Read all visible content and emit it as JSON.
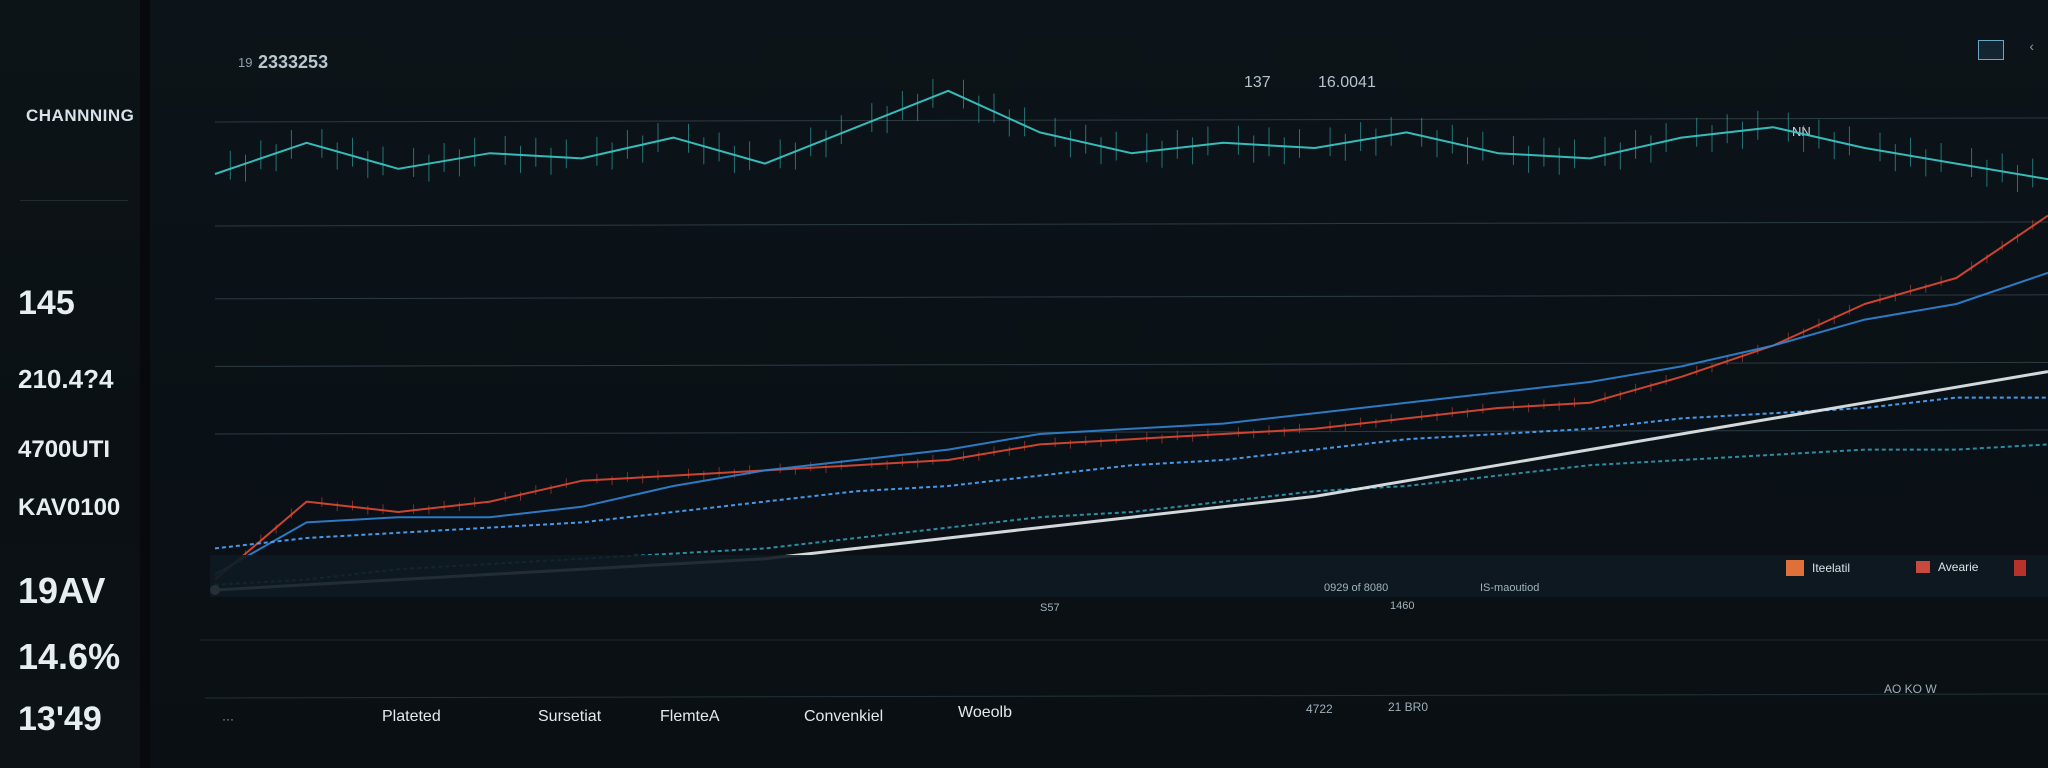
{
  "sidebar": {
    "top_label": "",
    "heading": "CHANNNING",
    "metrics": [
      {
        "value": "145",
        "sub": ""
      },
      {
        "value": "210.4?4",
        "sub": ""
      },
      {
        "value": "4700UTI",
        "sub": ""
      },
      {
        "value": "KAV0100",
        "sub": ""
      },
      {
        "value": "19AV",
        "sub": ""
      },
      {
        "value": "14.6%",
        "sub": ""
      },
      {
        "value": "13'49",
        "sub": ""
      }
    ]
  },
  "header": {
    "left_code": "19",
    "left_value": "2333253",
    "center_a": "137",
    "center_b": "16.0041",
    "right_a": "NN",
    "right_b": ""
  },
  "legend": [
    {
      "label": "Iteelatil",
      "color": "#e0703a"
    },
    {
      "label": "Avearie",
      "color": "#c84a3c"
    },
    {
      "label": "",
      "color": "#b8322c"
    }
  ],
  "mid_strip": {
    "a": "S57",
    "b": "0929 of 8080",
    "c": "IS-maoutiod",
    "d": "1460"
  },
  "bottom_tabs": [
    "Plateted",
    "Sursetiat",
    "FlemteA",
    "Convenkiel",
    "Woeolb"
  ],
  "bottom_right": [
    "4722",
    "21 BR0",
    "AO KO W"
  ],
  "colors": {
    "teal": "#39c4c4",
    "red": "#e04a33",
    "blue": "#2f86d6",
    "white": "#e9eef0"
  },
  "chart_data": {
    "type": "line",
    "title": "",
    "xlabel": "",
    "ylabel": "",
    "x": [
      0,
      5,
      10,
      15,
      20,
      25,
      30,
      35,
      40,
      45,
      50,
      55,
      60,
      65,
      70,
      75,
      80,
      85,
      90,
      95,
      100
    ],
    "ylim": [
      0,
      100
    ],
    "grid": true,
    "legend_position": "top-right",
    "series": [
      {
        "name": "",
        "color": "#39c4c4",
        "values": [
          80,
          86,
          81,
          84,
          83,
          87,
          82,
          89,
          96,
          88,
          84,
          86,
          85,
          88,
          84,
          83,
          87,
          89,
          85,
          82,
          79
        ]
      },
      {
        "name": "",
        "color": "#e04a33",
        "values": [
          2,
          17,
          15,
          17,
          21,
          22,
          23,
          24,
          25,
          28,
          29,
          30,
          31,
          33,
          35,
          36,
          41,
          47,
          55,
          60,
          72
        ]
      },
      {
        "name": "",
        "color": "#2f86d6",
        "values": [
          3,
          13,
          14,
          14,
          16,
          20,
          23,
          25,
          27,
          30,
          31,
          32,
          34,
          36,
          38,
          40,
          43,
          47,
          52,
          55,
          61
        ]
      },
      {
        "name": "",
        "color": "#4aa8ff",
        "values": [
          8,
          10,
          11,
          12,
          13,
          15,
          17,
          19,
          20,
          22,
          24,
          25,
          27,
          29,
          30,
          31,
          33,
          34,
          35,
          37,
          37
        ]
      },
      {
        "name": "",
        "color": "#2e9bb3",
        "values": [
          1,
          2,
          4,
          5,
          6,
          7,
          8,
          10,
          12,
          14,
          15,
          17,
          19,
          20,
          22,
          24,
          25,
          26,
          27,
          27,
          28
        ]
      },
      {
        "name": "",
        "color": "#e9eef0",
        "values": [
          0,
          1,
          2,
          3,
          4,
          5,
          6,
          8,
          10,
          12,
          14,
          16,
          18,
          21,
          24,
          27,
          30,
          33,
          36,
          39,
          42
        ]
      }
    ]
  }
}
